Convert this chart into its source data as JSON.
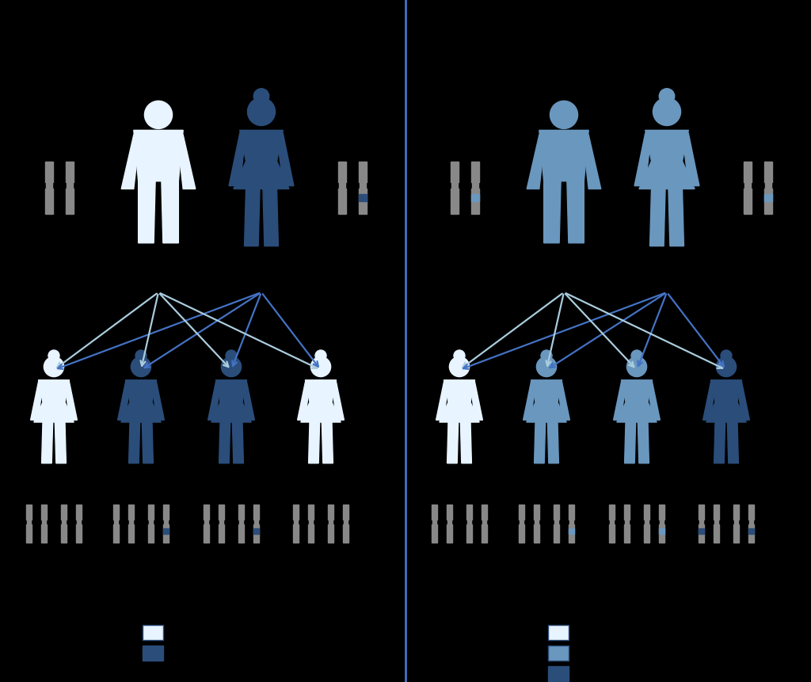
{
  "bg_color": "#000000",
  "divider_color": "#4472c4",
  "colors": {
    "white_figure": "#e8f4ff",
    "light_blue": "#6a97be",
    "medium_blue": "#2b4d7a",
    "dark_blue": "#1a2e50",
    "gray_chrom": "#888888",
    "chrom_band_white": "#cce0f0",
    "chrom_band_light": "#6a97be",
    "chrom_band_medium": "#2b4d7a",
    "chrom_band_dark": "#1a2e50",
    "arrow_white": "#aaccdd",
    "arrow_blue": "#4472c4"
  }
}
